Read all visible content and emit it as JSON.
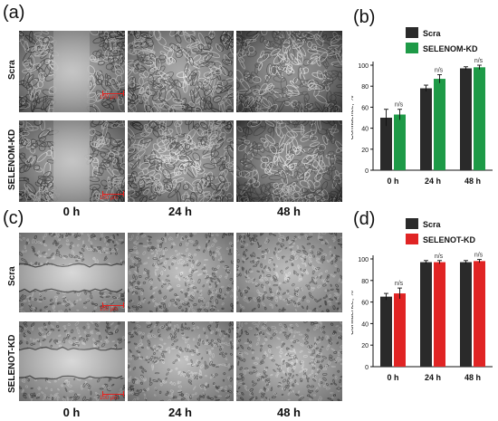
{
  "panels": {
    "a": {
      "letter": "(a)",
      "rows": [
        "Scra",
        "SELENOM-KD"
      ],
      "columns": [
        "0 h",
        "24 h",
        "48 h"
      ],
      "scale_bar": "100 µm",
      "style": "phase-contrast"
    },
    "c": {
      "letter": "(c)",
      "rows": [
        "Scra",
        "SELENOT-KD"
      ],
      "columns": [
        "0 h",
        "24 h",
        "48 h"
      ],
      "scale_bar": "100 µm",
      "style": "bright-field"
    },
    "b": {
      "letter": "(b)"
    },
    "d": {
      "letter": "(d)"
    }
  },
  "chart_data": [
    {
      "panel": "b",
      "type": "bar",
      "categories": [
        "0 h",
        "24 h",
        "48 h"
      ],
      "ylabel": "Confluence, %",
      "ylim": [
        0,
        100
      ],
      "yticks": [
        0,
        20,
        40,
        60,
        80,
        100
      ],
      "legend_position": "top",
      "series": [
        {
          "name": "Scra",
          "color": "#2a2a2a",
          "values": [
            50,
            78,
            97
          ],
          "errors": [
            8,
            3,
            1.5
          ]
        },
        {
          "name": "SELENOM-KD",
          "color": "#1e9a47",
          "values": [
            53,
            87,
            98
          ],
          "errors": [
            5,
            4,
            2
          ]
        }
      ],
      "annotations": [
        "n/s",
        "n/s",
        "n/s"
      ]
    },
    {
      "panel": "d",
      "type": "bar",
      "categories": [
        "0 h",
        "24 h",
        "48 h"
      ],
      "ylabel": "Confluence, %",
      "ylim": [
        0,
        100
      ],
      "yticks": [
        0,
        20,
        40,
        60,
        80,
        100
      ],
      "legend_position": "top",
      "series": [
        {
          "name": "Scra",
          "color": "#2a2a2a",
          "values": [
            65,
            97,
            97
          ],
          "errors": [
            3,
            1.5,
            1.5
          ]
        },
        {
          "name": "SELENOT-KD",
          "color": "#e02424",
          "values": [
            68,
            97,
            98
          ],
          "errors": [
            5,
            1.5,
            1.5
          ]
        }
      ],
      "annotations": [
        "n/s",
        "n/s",
        "n/s"
      ]
    }
  ]
}
